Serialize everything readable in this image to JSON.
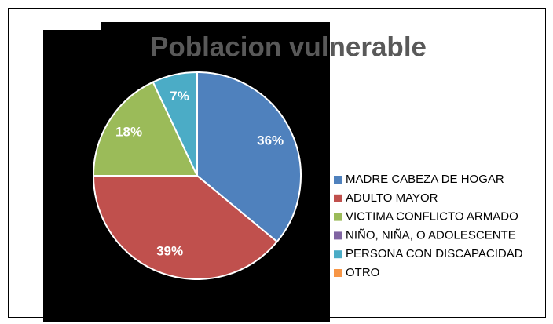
{
  "chart_data": {
    "type": "pie",
    "title": "Poblacion vulnerable",
    "categories": [
      "MADRE CABEZA DE HOGAR",
      "ADULTO MAYOR",
      "VICTIMA CONFLICTO ARMADO",
      "NIÑO, NIÑA, O ADOLESCENTE",
      "PERSONA CON DISCAPACIDAD",
      "OTRO"
    ],
    "values": [
      36,
      39,
      18,
      0,
      7,
      0
    ],
    "value_labels": [
      "36%",
      "39%",
      "18%",
      null,
      "7%",
      null
    ],
    "colors": [
      "#4f81bd",
      "#c0504d",
      "#9bbb59",
      "#8064a2",
      "#4bacc6",
      "#f79646"
    ],
    "legend": "right"
  }
}
